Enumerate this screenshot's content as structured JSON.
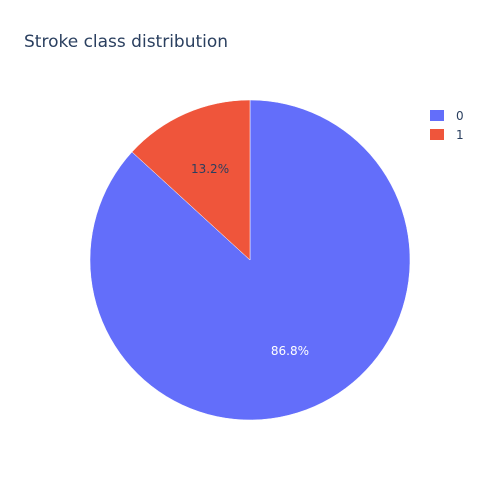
{
  "chart_data": {
    "type": "pie",
    "title": "Stroke class distribution",
    "categories": [
      "0",
      "1"
    ],
    "values": [
      86.8,
      13.2
    ],
    "labels": [
      "86.8%",
      "13.2%"
    ],
    "colors": [
      "#636efa",
      "#ef553b"
    ],
    "legend_position": "top-right",
    "text_colors": [
      "#ffffff",
      "#2a3f5f"
    ]
  }
}
